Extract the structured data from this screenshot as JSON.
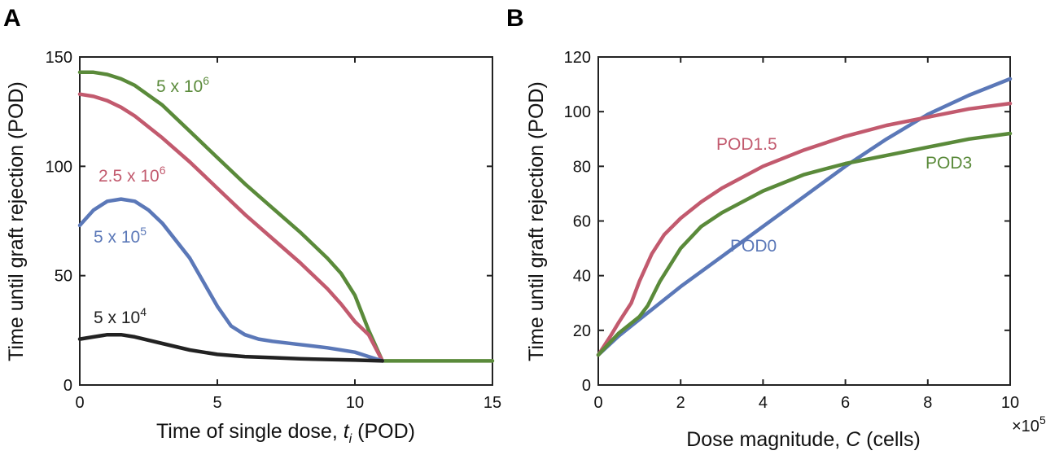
{
  "panels": {
    "a": {
      "label": "A"
    },
    "b": {
      "label": "B"
    }
  },
  "chart_data": [
    {
      "type": "line",
      "panel": "A",
      "xlabel_prefix": "Time of single dose, ",
      "xlabel_var": "t",
      "xlabel_sub": "i",
      "xlabel_suffix": " (POD)",
      "ylabel": "Time until graft rejection (POD)",
      "xlim": [
        0,
        15
      ],
      "ylim": [
        0,
        150
      ],
      "xticks": [
        0,
        5,
        10,
        15
      ],
      "yticks": [
        0,
        50,
        100,
        150
      ],
      "series": [
        {
          "name": "5 x 10^6",
          "label_base": "5 x 10",
          "label_exp": "6",
          "color": "#5a8a3a",
          "x": [
            0,
            0.5,
            1,
            1.5,
            2,
            3,
            4,
            5,
            6,
            7,
            8,
            9,
            9.5,
            10,
            10.5,
            11,
            15
          ],
          "y": [
            143,
            143,
            142,
            140,
            137,
            128,
            116,
            104,
            92,
            81,
            70,
            58,
            51,
            41,
            25,
            11,
            11
          ]
        },
        {
          "name": "2.5 x 10^6",
          "label_base": "2.5 x 10",
          "label_exp": "6",
          "color": "#c25a6e",
          "x": [
            0,
            0.5,
            1,
            1.5,
            2,
            3,
            4,
            5,
            6,
            7,
            8,
            9,
            9.5,
            10,
            10.5,
            11
          ],
          "y": [
            133,
            132,
            130,
            127,
            123,
            113,
            102,
            90,
            78,
            67,
            56,
            44,
            37,
            29,
            23,
            11
          ]
        },
        {
          "name": "5 x 10^5",
          "label_base": "5 x 10",
          "label_exp": "5",
          "color": "#5b78b8",
          "x": [
            0,
            0.5,
            1,
            1.5,
            2,
            2.5,
            3,
            4,
            5,
            5.5,
            6,
            6.5,
            7,
            8,
            9,
            10,
            10.5,
            11
          ],
          "y": [
            73,
            80,
            84,
            85,
            84,
            80,
            74,
            58,
            36,
            27,
            23,
            21,
            20,
            18.5,
            17,
            15,
            13,
            11
          ]
        },
        {
          "name": "5 x 10^4",
          "label_base": "5 x 10",
          "label_exp": "4",
          "color": "#222222",
          "x": [
            0,
            0.5,
            1,
            1.5,
            2,
            3,
            4,
            5,
            6,
            7,
            8,
            9,
            10,
            11
          ],
          "y": [
            21,
            22,
            23,
            23,
            22,
            19,
            16,
            14,
            13,
            12.5,
            12,
            11.7,
            11.4,
            11
          ]
        }
      ]
    },
    {
      "type": "line",
      "panel": "B",
      "xlabel_prefix": "Dose magnitude, ",
      "xlabel_var": "C",
      "xlabel_suffix": " (cells)",
      "ylabel": "Time until graft rejection (POD)",
      "x_multiplier_base": "×10",
      "x_multiplier_exp": "5",
      "xlim": [
        0,
        10
      ],
      "ylim": [
        0,
        120
      ],
      "xticks": [
        0,
        2,
        4,
        6,
        8,
        10
      ],
      "yticks": [
        0,
        20,
        40,
        60,
        80,
        100,
        120
      ],
      "series": [
        {
          "name": "POD0",
          "color": "#5b78b8",
          "x": [
            0,
            0.5,
            1,
            1.5,
            2,
            3,
            4,
            5,
            6,
            7,
            8,
            9,
            10
          ],
          "y": [
            11,
            18,
            24,
            30,
            36,
            47,
            58,
            69,
            80,
            90,
            99,
            106,
            112
          ]
        },
        {
          "name": "POD1.5",
          "color": "#c25a6e",
          "x": [
            0,
            0.3,
            0.5,
            0.8,
            1,
            1.3,
            1.6,
            2,
            2.5,
            3,
            4,
            5,
            6,
            7,
            8,
            9,
            10
          ],
          "y": [
            11,
            18,
            23,
            30,
            38,
            48,
            55,
            61,
            67,
            72,
            80,
            86,
            91,
            95,
            98,
            101,
            103
          ]
        },
        {
          "name": "POD3",
          "color": "#5a8a3a",
          "x": [
            0,
            0.5,
            1,
            1.2,
            1.5,
            2,
            2.5,
            3,
            4,
            5,
            6,
            7,
            8,
            9,
            10
          ],
          "y": [
            11,
            19,
            25,
            29,
            38,
            50,
            58,
            63,
            71,
            77,
            81,
            84,
            87,
            90,
            92
          ]
        }
      ]
    }
  ]
}
